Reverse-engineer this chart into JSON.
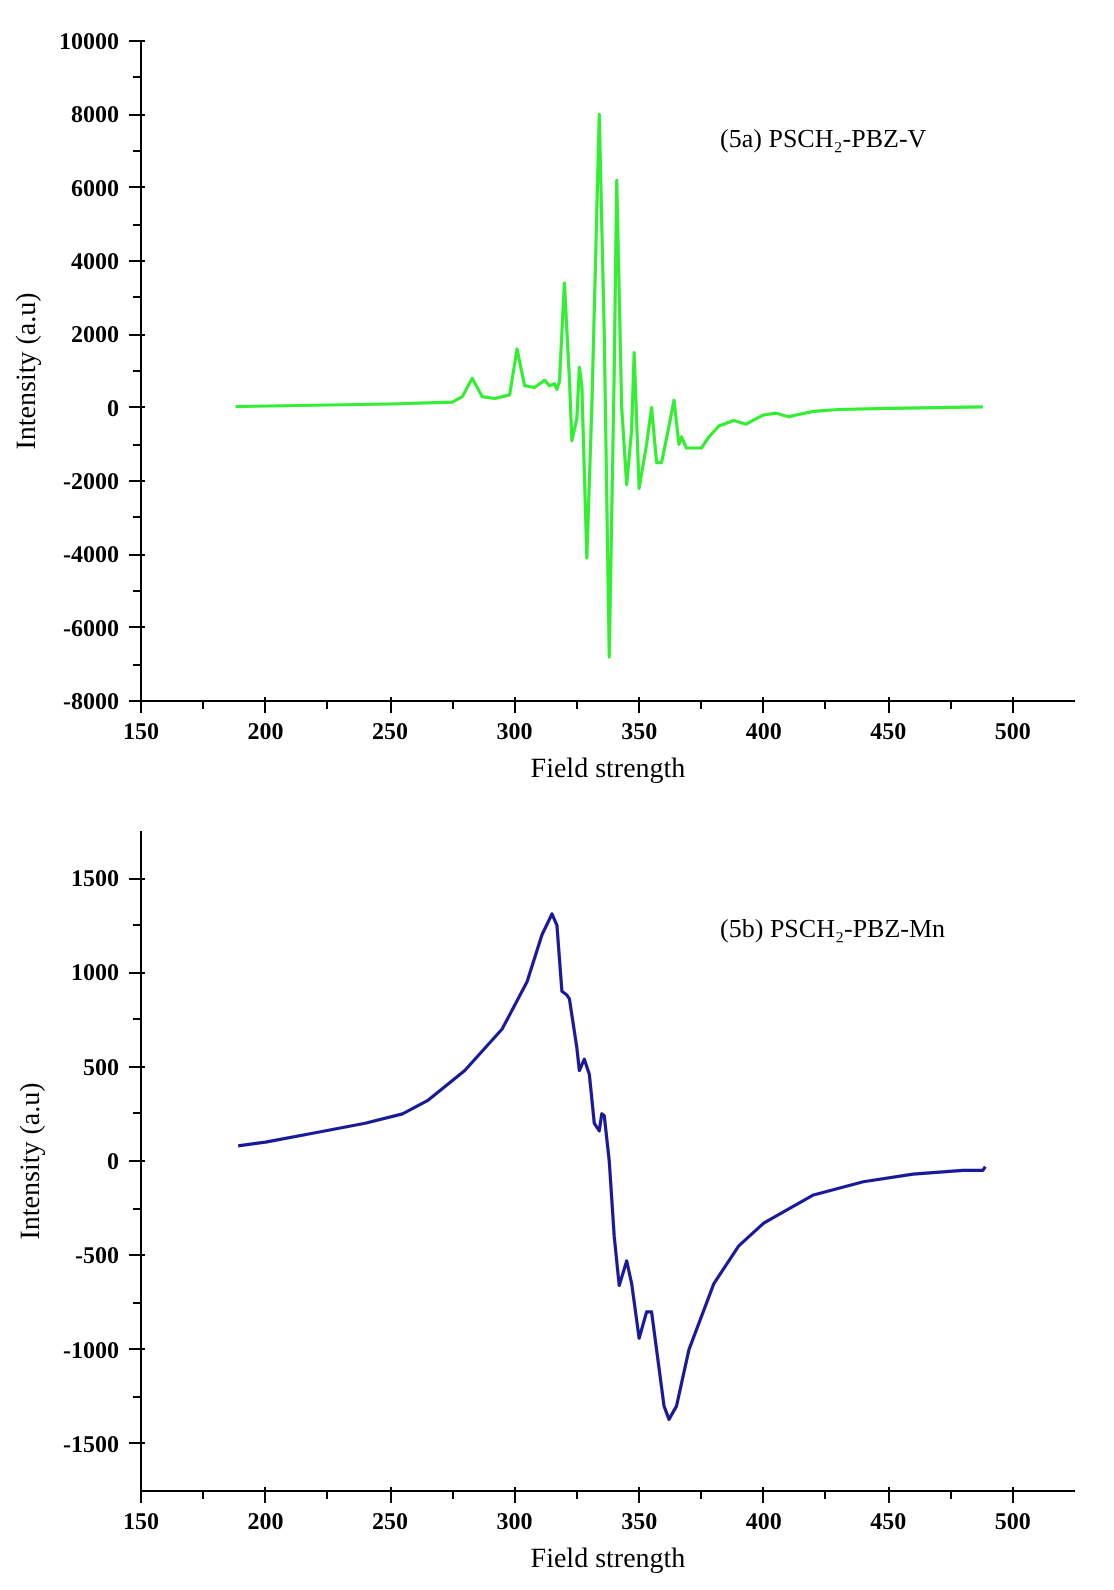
{
  "chart_data": [
    {
      "type": "line",
      "xlabel": "Field strength",
      "ylabel": "Intensity (a.u)",
      "annotations": [
        "(5a) PSCH₂-PBZ-V"
      ],
      "xlim": [
        150,
        525
      ],
      "xticks": [
        150,
        200,
        250,
        300,
        350,
        400,
        450,
        500
      ],
      "ylim": [
        -8000,
        10000
      ],
      "yticks": [
        -8000,
        -6000,
        -4000,
        -2000,
        0,
        2000,
        4000,
        6000,
        8000,
        10000
      ],
      "grid": false,
      "marker": "none",
      "line_style": "solid",
      "series": [
        {
          "color": "#33ee33",
          "x": [
            188,
            250,
            275,
            279,
            283,
            287,
            292,
            298,
            301,
            304,
            308,
            312,
            314,
            316,
            317,
            318,
            320,
            322,
            323,
            325,
            326,
            327,
            329,
            331,
            334,
            336,
            338,
            340,
            341,
            343,
            345,
            347,
            348,
            350,
            353,
            355,
            357,
            359,
            362,
            364,
            366,
            367,
            369,
            372,
            375,
            378,
            382,
            388,
            393,
            397,
            400,
            405,
            410,
            413,
            420,
            430,
            450,
            470,
            488
          ],
          "values": [
            30,
            100,
            150,
            300,
            800,
            300,
            250,
            350,
            1600,
            600,
            550,
            750,
            600,
            650,
            500,
            700,
            3400,
            800,
            -900,
            -300,
            1100,
            600,
            -4100,
            0,
            8000,
            2000,
            -6800,
            1000,
            6200,
            0,
            -2100,
            -600,
            1500,
            -2200,
            -1000,
            0,
            -1500,
            -1500,
            -500,
            200,
            -1000,
            -800,
            -1100,
            -1100,
            -1100,
            -800,
            -500,
            -350,
            -450,
            -300,
            -200,
            -150,
            -250,
            -200,
            -100,
            -50,
            -20,
            0,
            20
          ]
        }
      ]
    },
    {
      "type": "line",
      "xlabel": "Field strength",
      "ylabel": "Intensity (a.u)",
      "annotations": [
        "(5b) PSCH₂-PBZ-Mn"
      ],
      "xlim": [
        150,
        525
      ],
      "xticks": [
        150,
        200,
        250,
        300,
        350,
        400,
        450,
        500
      ],
      "ylim": [
        -1750,
        1750
      ],
      "yticks": [
        -1500,
        -1000,
        -500,
        0,
        500,
        1000,
        1500
      ],
      "grid": false,
      "marker": "none",
      "line_style": "solid",
      "series": [
        {
          "color": "#1a1a99",
          "x": [
            189,
            200,
            220,
            240,
            255,
            265,
            280,
            295,
            305,
            311,
            315,
            317,
            319,
            321,
            322,
            325,
            326,
            328,
            330,
            332,
            334,
            335,
            336,
            338,
            340,
            342,
            345,
            347,
            350,
            353,
            355,
            357,
            360,
            362,
            365,
            370,
            380,
            390,
            400,
            420,
            440,
            460,
            480,
            488,
            489
          ],
          "values": [
            80,
            100,
            150,
            200,
            250,
            320,
            480,
            700,
            950,
            1200,
            1310,
            1250,
            900,
            880,
            860,
            600,
            480,
            540,
            460,
            200,
            160,
            250,
            240,
            0,
            -400,
            -660,
            -530,
            -650,
            -940,
            -800,
            -800,
            -1000,
            -1300,
            -1370,
            -1300,
            -1000,
            -650,
            -450,
            -330,
            -180,
            -110,
            -70,
            -50,
            -50,
            -30
          ]
        }
      ]
    }
  ]
}
